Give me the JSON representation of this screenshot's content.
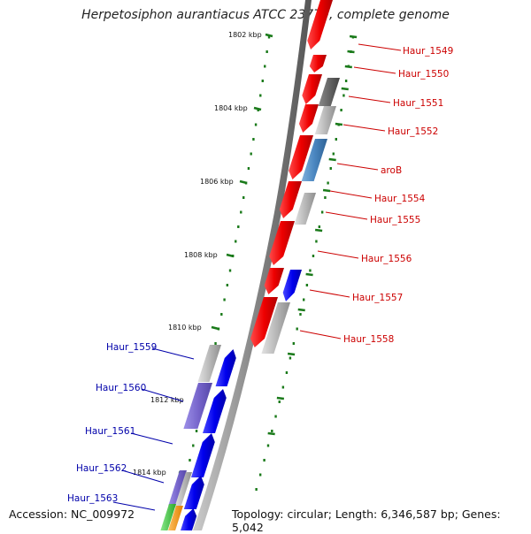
{
  "title": "Herpetosiphon aurantiacus ATCC 23779, complete genome",
  "accession": "Accession: NC_009972",
  "topology": "Topology: circular; Length: 6,346,587 bp; Genes: 5,042",
  "ticks": [
    "1802 kbp",
    "1804 kbp",
    "1806 kbp",
    "1808 kbp",
    "1810 kbp",
    "1812 kbp",
    "1814 kbp"
  ],
  "genes_forward": [
    "Haur_1549",
    "Haur_1550",
    "Haur_1551",
    "Haur_1552",
    "aroB",
    "Haur_1554",
    "Haur_1555",
    "Haur_1556",
    "Haur_1557",
    "Haur_1558"
  ],
  "genes_reverse": [
    "Haur_1559",
    "Haur_1560",
    "Haur_1561",
    "Haur_1562",
    "Haur_1563"
  ],
  "colors": {
    "forward_gene": "#ee0000",
    "reverse_gene": "#0000ee",
    "gray_feature": "#b8b8b8",
    "dark_gray_feature": "#666666",
    "steel_blue_feature": "#4a86c0",
    "purple_feature": "#7766cc",
    "green_feature": "#44cc44",
    "orange_feature": "#ff9900",
    "backbone": "#888888",
    "tick_mark": "#1a7a1a"
  }
}
